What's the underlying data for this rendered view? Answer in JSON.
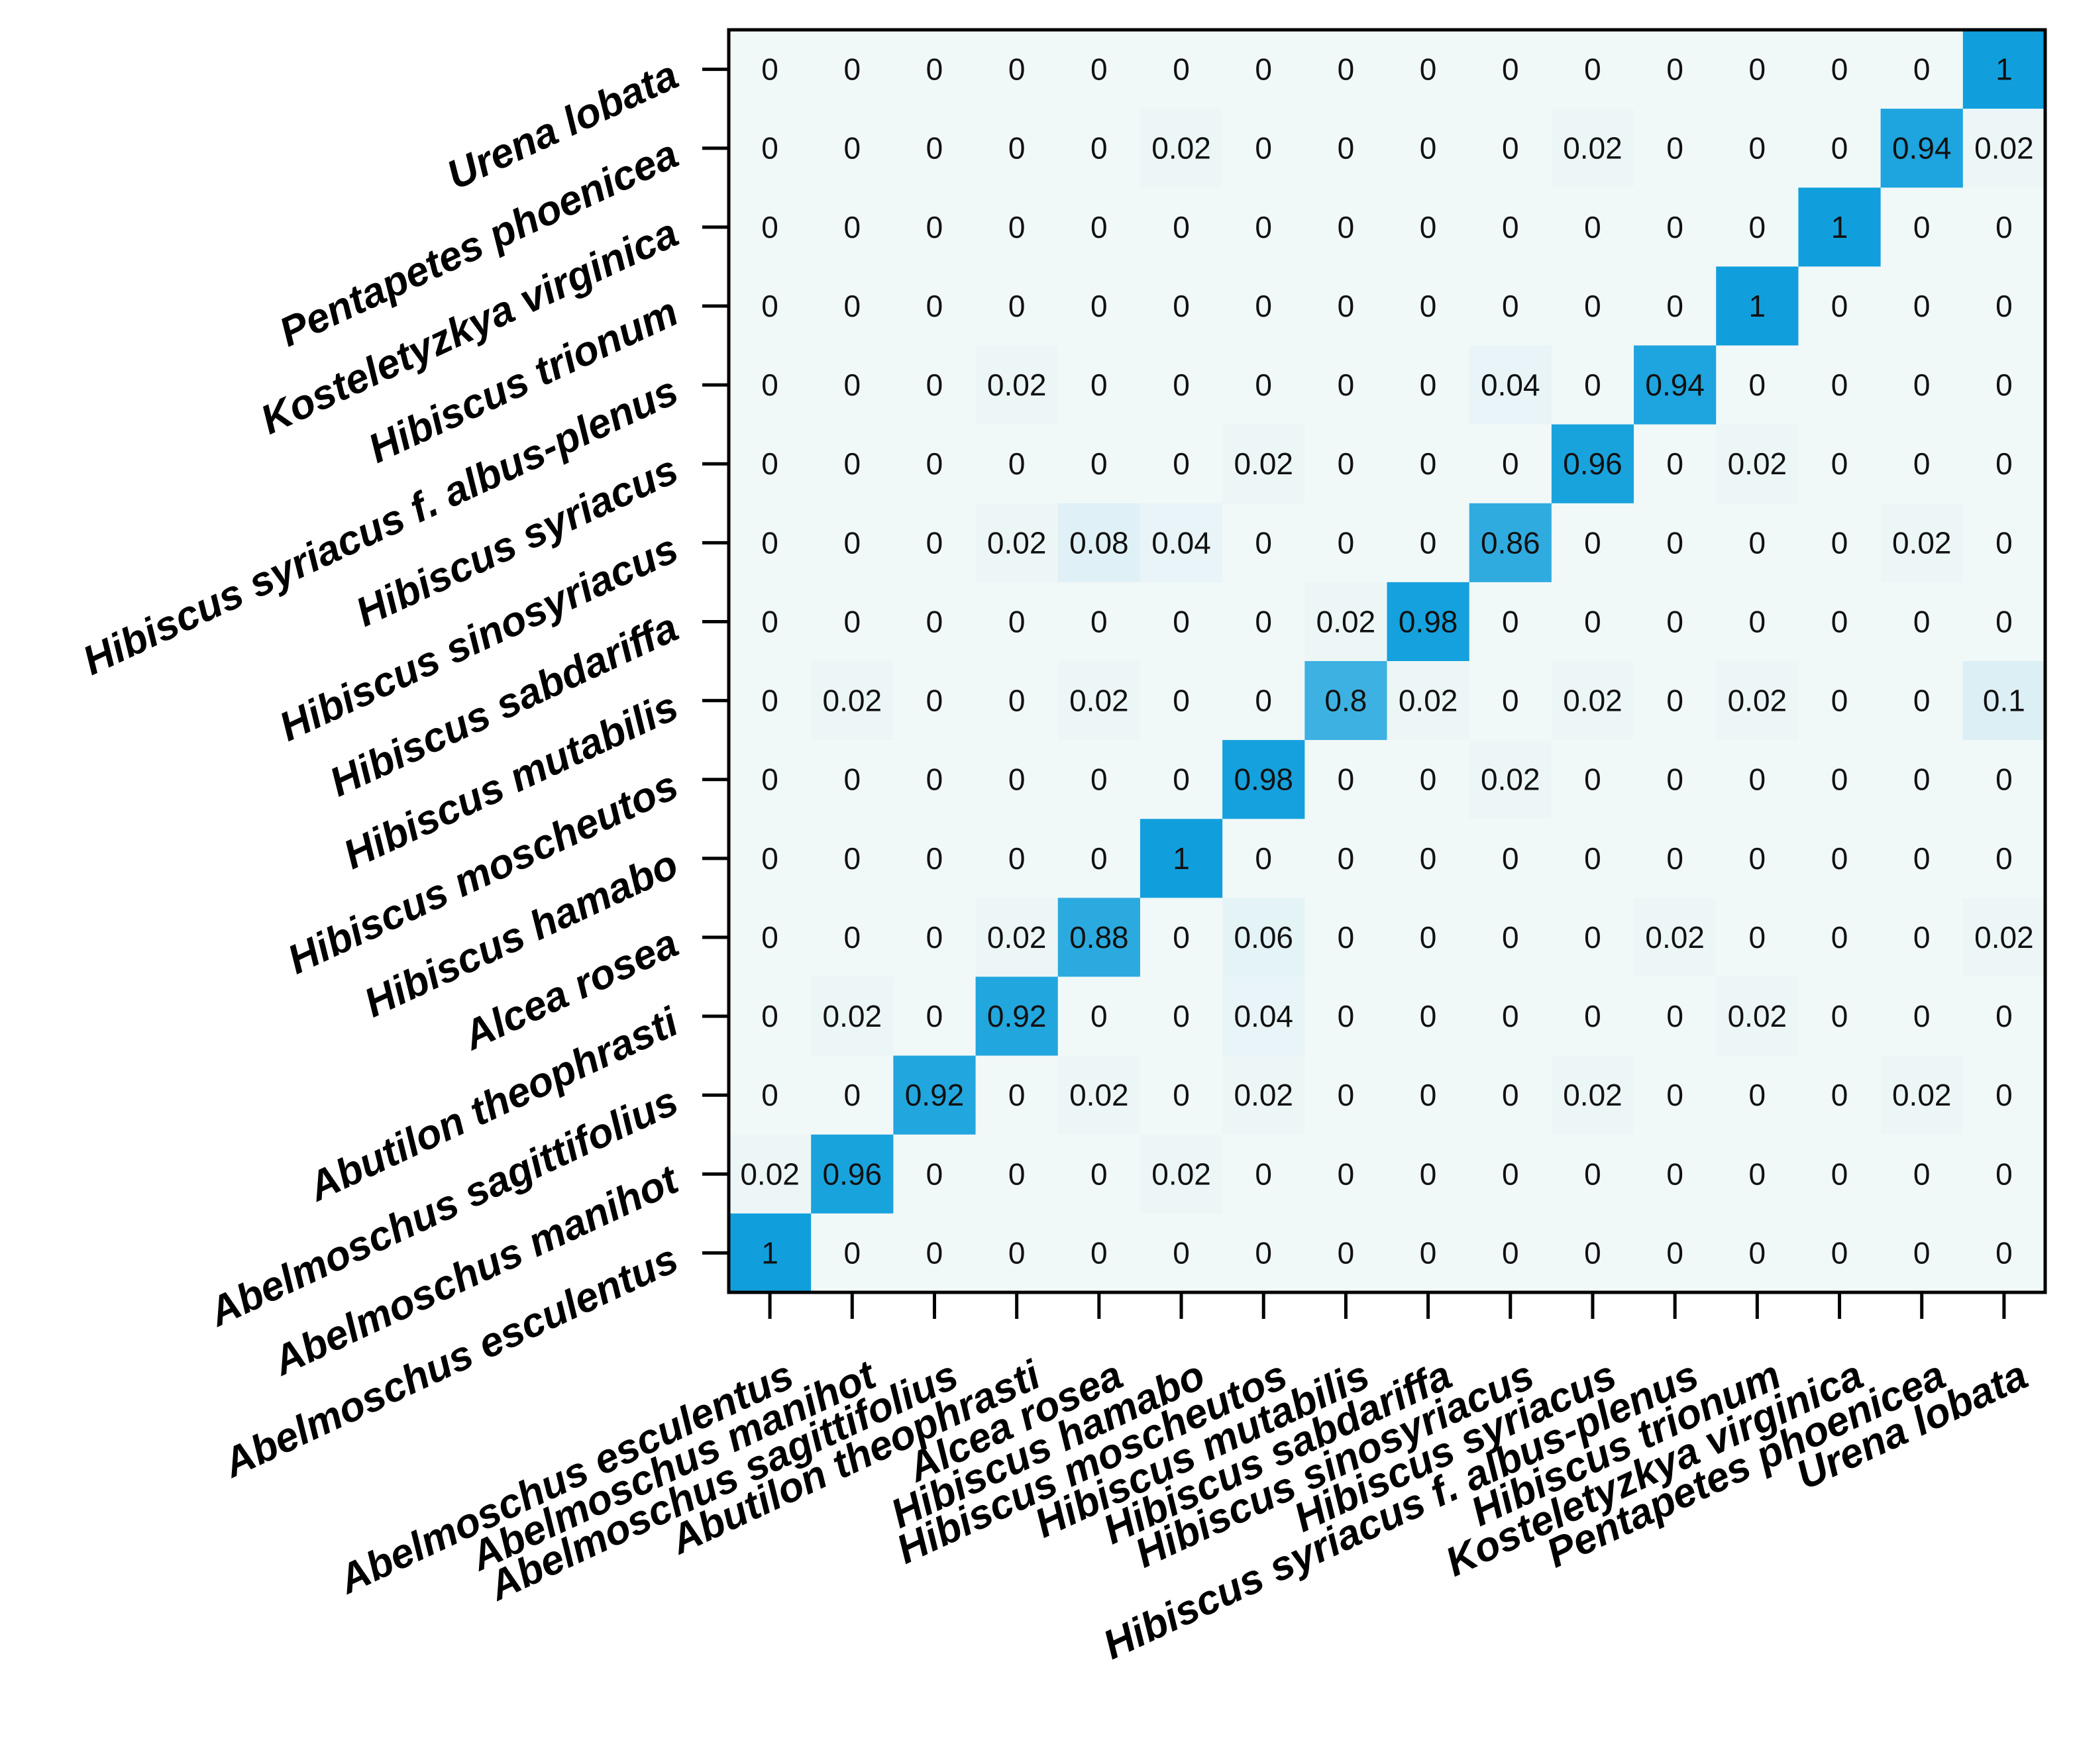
{
  "chart_data": {
    "type": "heatmap",
    "title": "",
    "xlabel": "",
    "ylabel": "",
    "x_categories": [
      "Abelmoschus esculentus",
      "Abelmoschus manihot",
      "Abelmoschus sagittifolius",
      "Abutilon theophrasti",
      "Alcea rosea",
      "Hibiscus hamabo",
      "Hibiscus moscheutos",
      "Hibiscus mutabilis",
      "Hibiscus sabdariffa",
      "Hibiscus sinosyriacus",
      "Hibiscus syriacus",
      "Hibiscus syriacus f. albus-plenus",
      "Hibiscus trionum",
      "Kosteletyzkya virginica",
      "Pentapetes phoenicea",
      "Urena lobata"
    ],
    "y_categories_top_to_bottom": [
      "Urena lobata",
      "Pentapetes phoenicea",
      "Kosteletyzkya virginica",
      "Hibiscus trionum",
      "Hibiscus syriacus f. albus-plenus",
      "Hibiscus syriacus",
      "Hibiscus sinosyriacus",
      "Hibiscus sabdariffa",
      "Hibiscus mutabilis",
      "Hibiscus moscheutos",
      "Hibiscus hamabo",
      "Alcea rosea",
      "Abutilon theophrasti",
      "Abelmoschus sagittifolius",
      "Abelmoschus manihot",
      "Abelmoschus esculentus"
    ],
    "matrix": [
      [
        "0",
        "0",
        "0",
        "0",
        "0",
        "0",
        "0",
        "0",
        "0",
        "0",
        "0",
        "0",
        "0",
        "0",
        "0",
        "1"
      ],
      [
        "0",
        "0",
        "0",
        "0",
        "0",
        "0.02",
        "0",
        "0",
        "0",
        "0",
        "0.02",
        "0",
        "0",
        "0",
        "0.94",
        "0.02"
      ],
      [
        "0",
        "0",
        "0",
        "0",
        "0",
        "0",
        "0",
        "0",
        "0",
        "0",
        "0",
        "0",
        "0",
        "1",
        "0",
        "0"
      ],
      [
        "0",
        "0",
        "0",
        "0",
        "0",
        "0",
        "0",
        "0",
        "0",
        "0",
        "0",
        "0",
        "1",
        "0",
        "0",
        "0"
      ],
      [
        "0",
        "0",
        "0",
        "0.02",
        "0",
        "0",
        "0",
        "0",
        "0",
        "0.04",
        "0",
        "0.94",
        "0",
        "0",
        "0",
        "0"
      ],
      [
        "0",
        "0",
        "0",
        "0",
        "0",
        "0",
        "0.02",
        "0",
        "0",
        "0",
        "0.96",
        "0",
        "0.02",
        "0",
        "0",
        "0"
      ],
      [
        "0",
        "0",
        "0",
        "0.02",
        "0.08",
        "0.04",
        "0",
        "0",
        "0",
        "0.86",
        "0",
        "0",
        "0",
        "0",
        "0.02",
        "0"
      ],
      [
        "0",
        "0",
        "0",
        "0",
        "0",
        "0",
        "0",
        "0.02",
        "0.98",
        "0",
        "0",
        "0",
        "0",
        "0",
        "0",
        "0"
      ],
      [
        "0",
        "0.02",
        "0",
        "0",
        "0.02",
        "0",
        "0",
        "0.8",
        "0.02",
        "0",
        "0.02",
        "0",
        "0.02",
        "0",
        "0",
        "0.1"
      ],
      [
        "0",
        "0",
        "0",
        "0",
        "0",
        "0",
        "0.98",
        "0",
        "0",
        "0.02",
        "0",
        "0",
        "0",
        "0",
        "0",
        "0"
      ],
      [
        "0",
        "0",
        "0",
        "0",
        "0",
        "1",
        "0",
        "0",
        "0",
        "0",
        "0",
        "0",
        "0",
        "0",
        "0",
        "0"
      ],
      [
        "0",
        "0",
        "0",
        "0.02",
        "0.88",
        "0",
        "0.06",
        "0",
        "0",
        "0",
        "0",
        "0.02",
        "0",
        "0",
        "0",
        "0.02"
      ],
      [
        "0",
        "0.02",
        "0",
        "0.92",
        "0",
        "0",
        "0.04",
        "0",
        "0",
        "0",
        "0",
        "0",
        "0.02",
        "0",
        "0",
        "0"
      ],
      [
        "0",
        "0",
        "0.92",
        "0",
        "0.02",
        "0",
        "0.02",
        "0",
        "0",
        "0",
        "0.02",
        "0",
        "0",
        "0",
        "0.02",
        "0"
      ],
      [
        "0.02",
        "0.96",
        "0",
        "0",
        "0",
        "0.02",
        "0",
        "0",
        "0",
        "0",
        "0",
        "0",
        "0",
        "0",
        "0",
        "0"
      ],
      [
        "1",
        "0",
        "0",
        "0",
        "0",
        "0",
        "0",
        "0",
        "0",
        "0",
        "0",
        "0",
        "0",
        "0",
        "0",
        "0"
      ]
    ],
    "value_range": [
      0,
      1
    ],
    "colors": {
      "low": "#f1f8f8",
      "high": "#109fdc",
      "text": "#111111",
      "frame": "#000000"
    },
    "grid": false,
    "legend": "none"
  }
}
